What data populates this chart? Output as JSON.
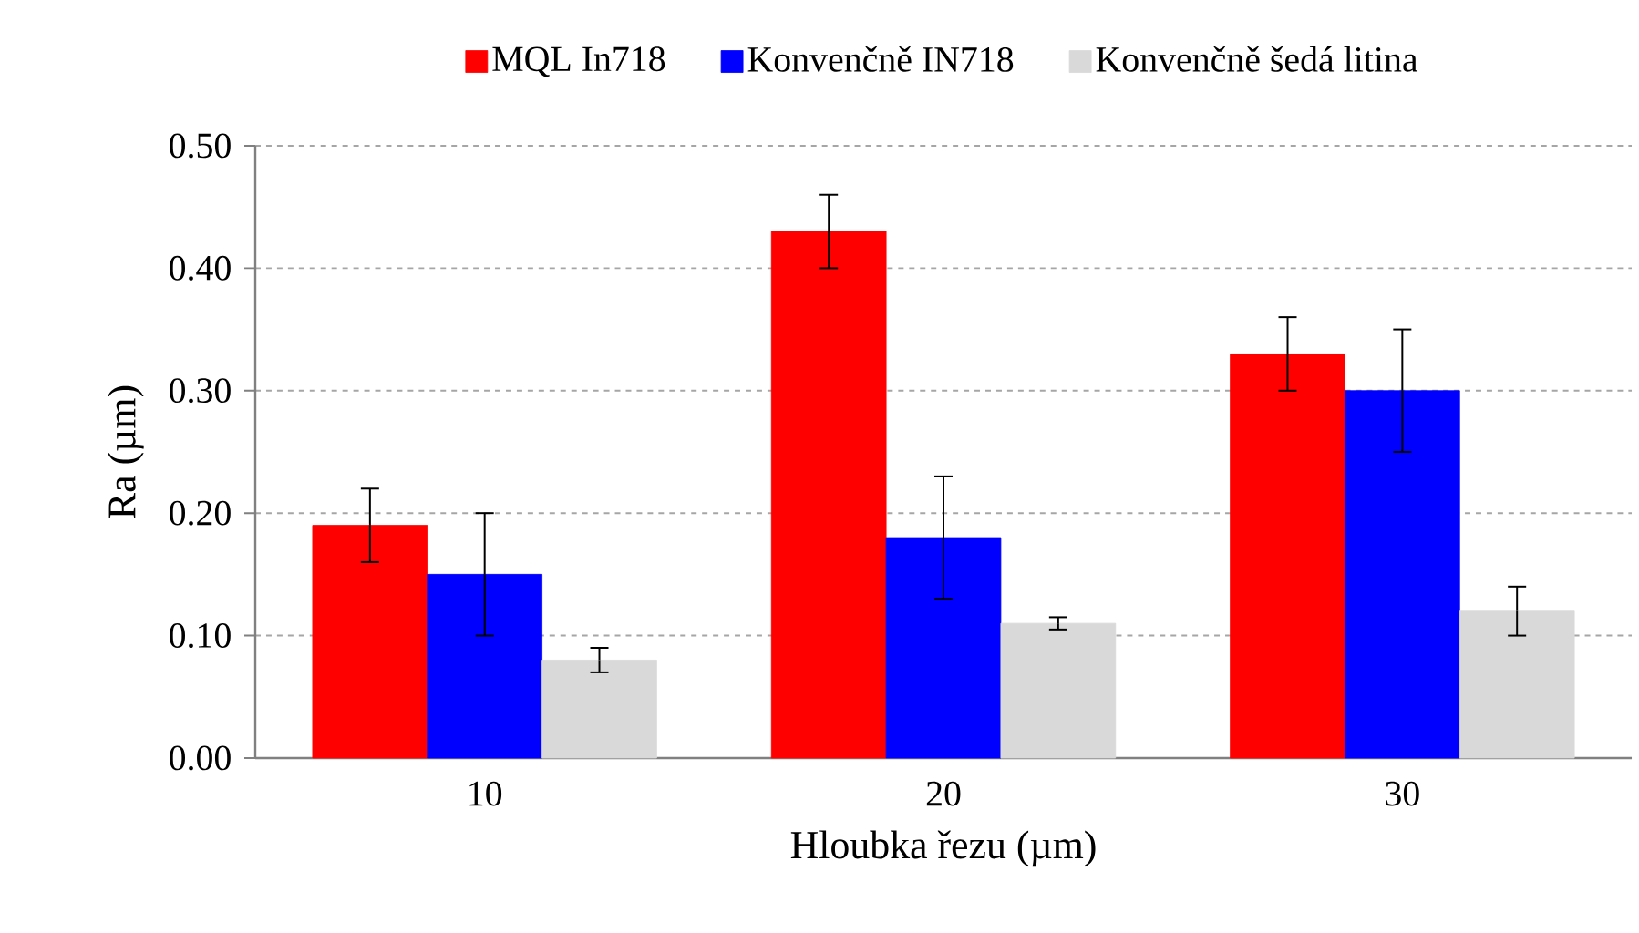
{
  "chart_data": {
    "type": "bar",
    "xlabel": "Hloubka řezu (µm)",
    "ylabel": "Ra (µm)",
    "categories": [
      "10",
      "20",
      "30"
    ],
    "series": [
      {
        "name": "MQL In718",
        "color": "#ff0000",
        "values": [
          0.19,
          0.43,
          0.33
        ],
        "errors": [
          [
            0.16,
            0.22
          ],
          [
            0.4,
            0.46
          ],
          [
            0.3,
            0.36
          ]
        ]
      },
      {
        "name": "Konvenčně IN718",
        "color": "#0000ff",
        "values": [
          0.15,
          0.18,
          0.3
        ],
        "errors": [
          [
            0.1,
            0.2
          ],
          [
            0.13,
            0.23
          ],
          [
            0.25,
            0.35
          ]
        ]
      },
      {
        "name": "Konvenčně šedá litina",
        "color": "#d9d9d9",
        "values": [
          0.08,
          0.11,
          0.12
        ],
        "errors": [
          [
            0.07,
            0.09
          ],
          [
            0.105,
            0.115
          ],
          [
            0.1,
            0.14
          ]
        ]
      }
    ],
    "ylim": [
      0,
      0.5
    ],
    "yticks": [
      {
        "value": 0,
        "label": "0.00"
      },
      {
        "value": 0.1,
        "label": "0.10"
      },
      {
        "value": 0.2,
        "label": "0.20"
      },
      {
        "value": 0.3,
        "label": "0.30"
      },
      {
        "value": 0.4,
        "label": "0.40"
      },
      {
        "value": 0.5,
        "label": "0.50"
      }
    ],
    "grid": "y",
    "legend": "top"
  }
}
